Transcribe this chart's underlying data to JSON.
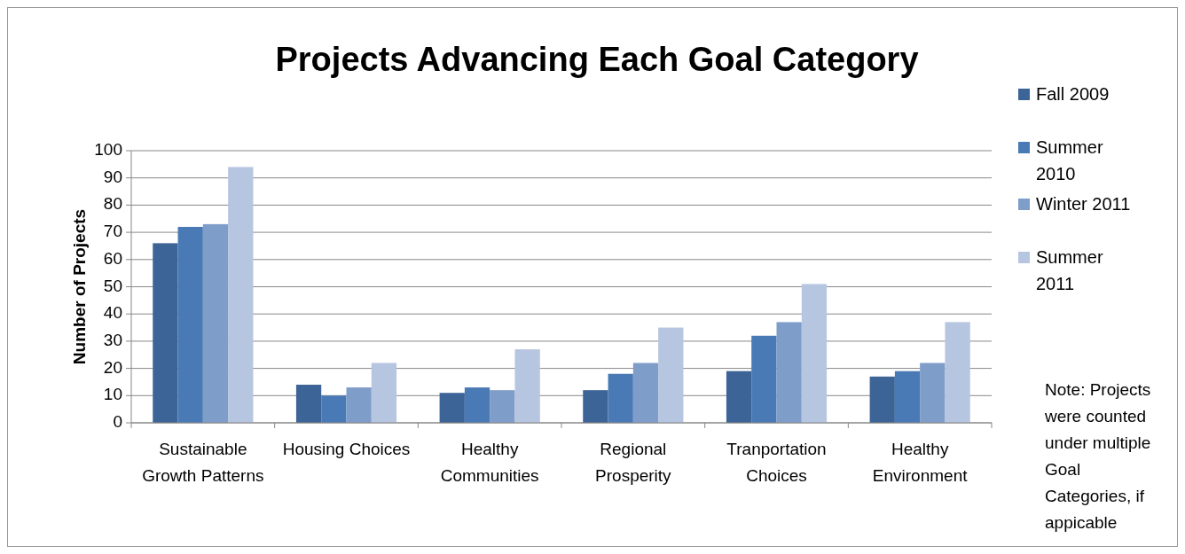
{
  "chart_data": {
    "type": "bar",
    "title": "Projects Advancing Each Goal Category",
    "ylabel": "Number of Projects",
    "categories": [
      "Sustainable Growth Patterns",
      "Housing Choices",
      "Healthy Communities",
      "Regional Prosperity",
      "Tranportation Choices",
      "Healthy Environment"
    ],
    "series": [
      {
        "name": "Fall 2009",
        "color": "#3d6496",
        "values": [
          66,
          14,
          11,
          12,
          19,
          17
        ]
      },
      {
        "name": "Summer 2010",
        "color": "#4a7ab5",
        "values": [
          72,
          10,
          13,
          18,
          32,
          19
        ]
      },
      {
        "name": "Winter 2011",
        "color": "#7f9dc9",
        "values": [
          73,
          13,
          12,
          22,
          37,
          22
        ]
      },
      {
        "name": "Summer 2011",
        "color": "#b6c5e0",
        "values": [
          94,
          22,
          27,
          35,
          51,
          37
        ]
      }
    ],
    "ylim": [
      0,
      100
    ],
    "yticks": [
      0,
      10,
      20,
      30,
      40,
      50,
      60,
      70,
      80,
      90,
      100
    ],
    "grid": "y",
    "legend": "right",
    "annotations": [
      "Note: Projects were counted under multiple Goal Categories, if appicable"
    ]
  }
}
